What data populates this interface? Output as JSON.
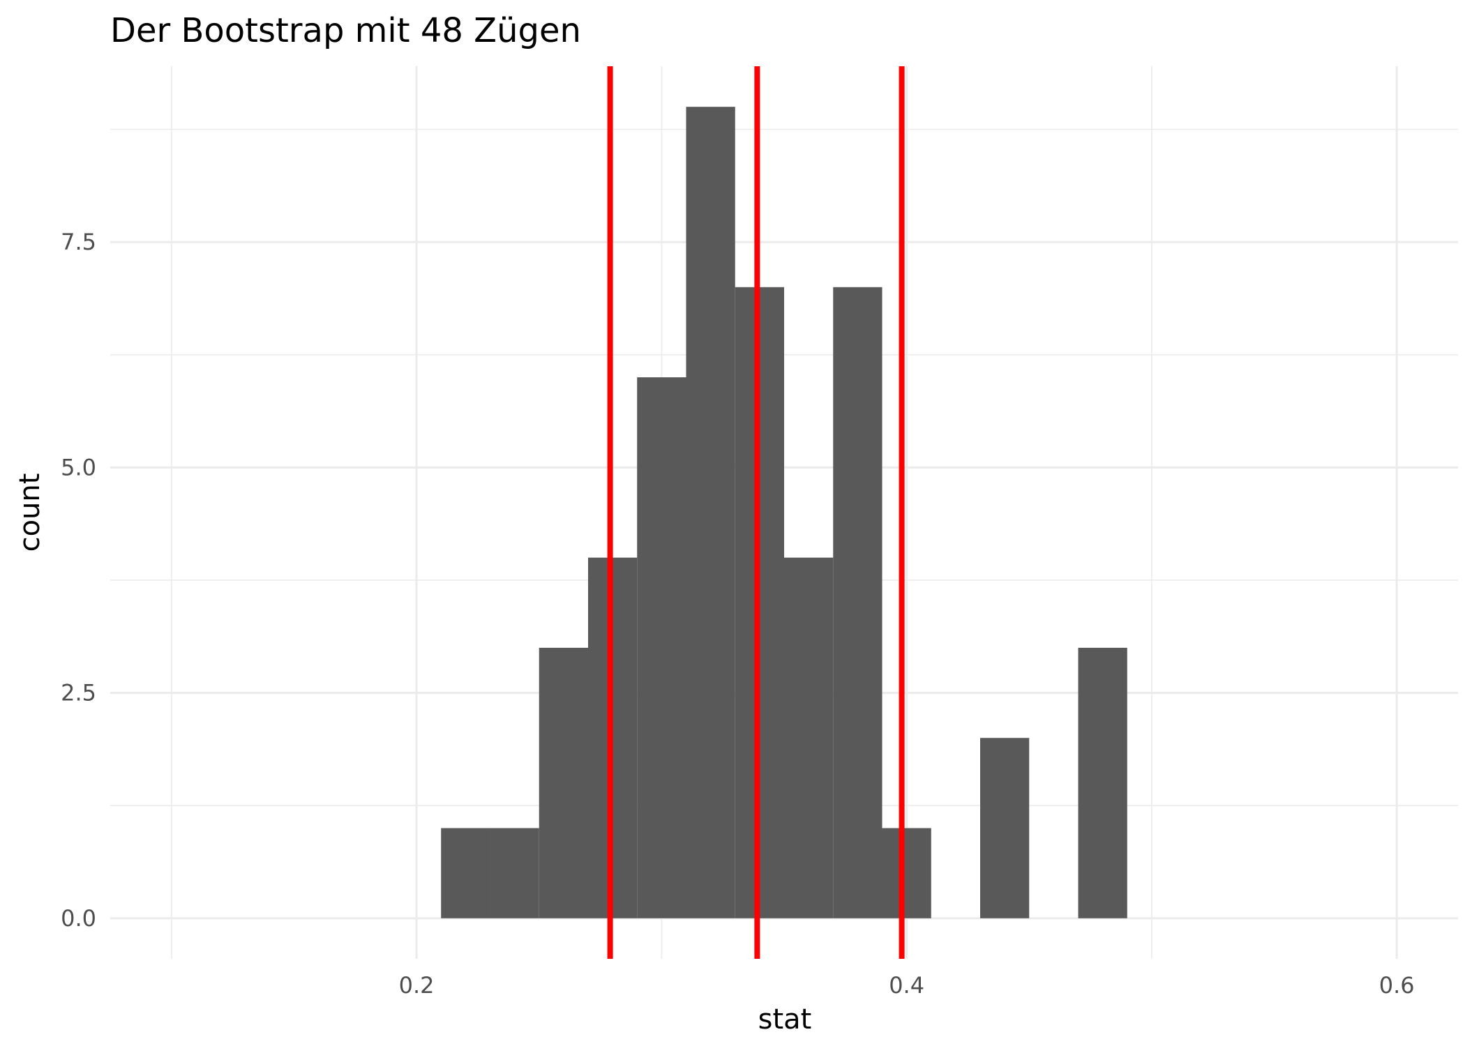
{
  "chart_data": {
    "type": "bar",
    "title": "Der Bootstrap mit 48 Zügen",
    "xlabel": "stat",
    "ylabel": "count",
    "xlim": [
      0.075,
      0.625
    ],
    "ylim": [
      -0.45,
      9.45
    ],
    "x_ticks": [
      0.2,
      0.4,
      0.6
    ],
    "x_tick_labels": [
      "0.2",
      "0.4",
      "0.6"
    ],
    "y_ticks": [
      0,
      2.5,
      5,
      7.5
    ],
    "y_tick_labels": [
      "0.0",
      "2.5",
      "5.0",
      "7.5"
    ],
    "grid": true,
    "bins": [
      {
        "x0": 0.21,
        "x1": 0.23,
        "count": 1
      },
      {
        "x0": 0.23,
        "x1": 0.25,
        "count": 1
      },
      {
        "x0": 0.25,
        "x1": 0.27,
        "count": 3
      },
      {
        "x0": 0.27,
        "x1": 0.29,
        "count": 4
      },
      {
        "x0": 0.29,
        "x1": 0.31,
        "count": 6
      },
      {
        "x0": 0.31,
        "x1": 0.33,
        "count": 9
      },
      {
        "x0": 0.33,
        "x1": 0.35,
        "count": 7
      },
      {
        "x0": 0.35,
        "x1": 0.37,
        "count": 4
      },
      {
        "x0": 0.37,
        "x1": 0.39,
        "count": 7
      },
      {
        "x0": 0.39,
        "x1": 0.41,
        "count": 1
      },
      {
        "x0": 0.41,
        "x1": 0.43,
        "count": 0
      },
      {
        "x0": 0.43,
        "x1": 0.45,
        "count": 2
      },
      {
        "x0": 0.45,
        "x1": 0.47,
        "count": 0
      },
      {
        "x0": 0.47,
        "x1": 0.49,
        "count": 3
      }
    ],
    "vlines": [
      0.279,
      0.339,
      0.398
    ],
    "bar_color": "#595959",
    "vline_color": "#ff0000",
    "grid_color": "#ebebeb"
  }
}
